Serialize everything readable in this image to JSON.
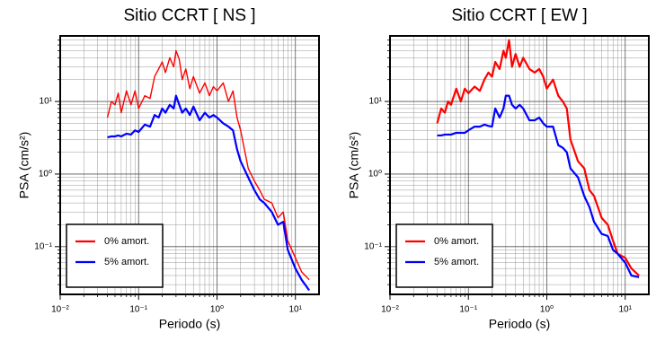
{
  "chart_data": [
    {
      "type": "line",
      "title": "Sitio CCRT [ NS ]",
      "x_label": "Periodo (s)",
      "y_label": "PSA (cm/s²)",
      "x": [
        0.04,
        0.045,
        0.05,
        0.055,
        0.06,
        0.07,
        0.08,
        0.09,
        0.1,
        0.12,
        0.14,
        0.16,
        0.18,
        0.2,
        0.22,
        0.25,
        0.28,
        0.3,
        0.33,
        0.36,
        0.4,
        0.45,
        0.5,
        0.6,
        0.7,
        0.8,
        0.9,
        1.0,
        1.2,
        1.4,
        1.6,
        1.8,
        2.0,
        2.5,
        3.0,
        3.5,
        4.0,
        5.0,
        6.0,
        7.0,
        8.0,
        10.0,
        12.0,
        15.0
      ],
      "series": [
        {
          "name": "0% amort.",
          "color": "#ff0000",
          "values": [
            6,
            10,
            9,
            13,
            7,
            14,
            9,
            14,
            8,
            12,
            11,
            22,
            28,
            35,
            25,
            40,
            30,
            50,
            38,
            20,
            28,
            15,
            22,
            13,
            18,
            12,
            16,
            14,
            18,
            10,
            14,
            6,
            4,
            1.2,
            0.8,
            0.6,
            0.45,
            0.4,
            0.25,
            0.3,
            0.12,
            0.07,
            0.045,
            0.035
          ]
        },
        {
          "name": "5% amort.",
          "color": "#0000ff",
          "values": [
            3.2,
            3.3,
            3.3,
            3.4,
            3.3,
            3.6,
            3.5,
            4,
            3.8,
            4.8,
            4.5,
            6.5,
            6,
            8,
            7,
            9,
            8,
            12,
            9,
            7,
            8,
            6.5,
            8.5,
            5.5,
            7,
            6,
            6.5,
            6,
            5,
            4.5,
            4,
            2.2,
            1.5,
            0.9,
            0.6,
            0.45,
            0.4,
            0.3,
            0.2,
            0.22,
            0.09,
            0.05,
            0.035,
            0.025
          ]
        }
      ],
      "log_x": true,
      "log_y": true,
      "xlim": [
        0.01,
        20
      ],
      "ylim": [
        0.022,
        80
      ],
      "xticks": [
        {
          "value": 0.01,
          "label": "10⁻²"
        },
        {
          "value": 0.1,
          "label": "10⁻¹"
        },
        {
          "value": 1,
          "label": "10⁰"
        },
        {
          "value": 10,
          "label": "10¹"
        }
      ],
      "yticks": [
        {
          "value": 0.1,
          "label": "10⁻¹"
        },
        {
          "value": 1,
          "label": "10⁰"
        },
        {
          "value": 10,
          "label": "10¹"
        }
      ],
      "grid": true,
      "legend": "lower-left"
    },
    {
      "type": "line",
      "title": "Sitio CCRT [ EW ]",
      "x_label": "Periodo (s)",
      "y_label": "PSA (cm/s²)",
      "x": [
        0.04,
        0.045,
        0.05,
        0.055,
        0.06,
        0.07,
        0.08,
        0.09,
        0.1,
        0.12,
        0.14,
        0.16,
        0.18,
        0.2,
        0.22,
        0.25,
        0.28,
        0.3,
        0.33,
        0.36,
        0.4,
        0.45,
        0.5,
        0.6,
        0.7,
        0.8,
        0.9,
        1.0,
        1.2,
        1.4,
        1.6,
        1.8,
        2.0,
        2.5,
        3.0,
        3.5,
        4.0,
        5.0,
        6.0,
        7.0,
        8.0,
        10.0,
        12.0,
        15.0
      ],
      "series": [
        {
          "name": "0% amort.",
          "color": "#ff0000",
          "values": [
            5,
            8,
            7,
            10,
            9,
            15,
            10,
            15,
            13,
            16,
            14,
            20,
            25,
            22,
            35,
            28,
            50,
            40,
            70,
            30,
            45,
            30,
            40,
            28,
            25,
            28,
            22,
            15,
            20,
            12,
            10,
            8,
            3,
            1.5,
            1.2,
            0.6,
            0.5,
            0.25,
            0.2,
            0.12,
            0.08,
            0.07,
            0.05,
            0.04
          ]
        },
        {
          "name": "5% amort.",
          "color": "#0000ff",
          "values": [
            3.4,
            3.4,
            3.5,
            3.5,
            3.5,
            3.7,
            3.7,
            3.7,
            4,
            4.5,
            4.5,
            4.8,
            4.6,
            4.5,
            8,
            6,
            8,
            12,
            12,
            9,
            8,
            9,
            8,
            5.5,
            5.5,
            6,
            5,
            4.5,
            4.5,
            2.5,
            2.3,
            2,
            1.2,
            0.9,
            0.5,
            0.35,
            0.22,
            0.15,
            0.14,
            0.09,
            0.08,
            0.06,
            0.04,
            0.038
          ]
        }
      ],
      "log_x": true,
      "log_y": true,
      "xlim": [
        0.01,
        20
      ],
      "ylim": [
        0.022,
        80
      ],
      "xticks": [
        {
          "value": 0.01,
          "label": "10⁻²"
        },
        {
          "value": 0.1,
          "label": "10⁻¹"
        },
        {
          "value": 1,
          "label": "10⁰"
        },
        {
          "value": 10,
          "label": "10¹"
        }
      ],
      "yticks": [
        {
          "value": 0.1,
          "label": "10⁻¹"
        },
        {
          "value": 1,
          "label": "10⁰"
        },
        {
          "value": 10,
          "label": "10¹"
        }
      ],
      "grid": true,
      "legend": "lower-left"
    }
  ]
}
